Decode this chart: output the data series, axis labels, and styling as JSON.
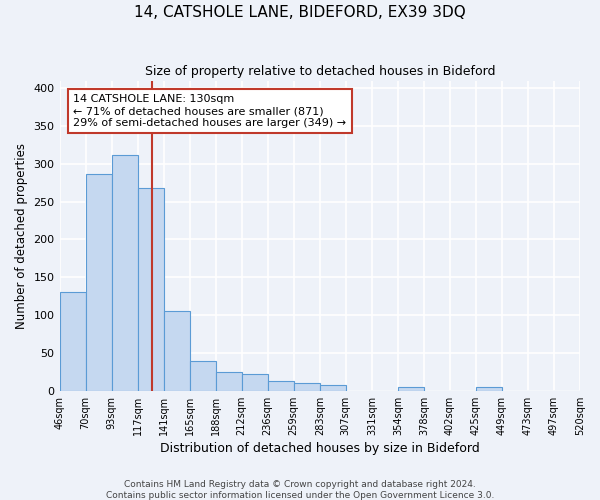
{
  "title": "14, CATSHOLE LANE, BIDEFORD, EX39 3DQ",
  "subtitle": "Size of property relative to detached houses in Bideford",
  "xlabel": "Distribution of detached houses by size in Bideford",
  "ylabel": "Number of detached properties",
  "bin_labels": [
    "46sqm",
    "70sqm",
    "93sqm",
    "117sqm",
    "141sqm",
    "165sqm",
    "188sqm",
    "212sqm",
    "236sqm",
    "259sqm",
    "283sqm",
    "307sqm",
    "331sqm",
    "354sqm",
    "378sqm",
    "402sqm",
    "425sqm",
    "449sqm",
    "473sqm",
    "497sqm",
    "520sqm"
  ],
  "bar_values": [
    130,
    287,
    312,
    268,
    106,
    40,
    25,
    22,
    13,
    10,
    8,
    0,
    0,
    5,
    0,
    0,
    5,
    0,
    0,
    0
  ],
  "bar_color": "#c5d8f0",
  "bar_edgecolor": "#5b9bd5",
  "bar_linewidth": 0.8,
  "vline_color": "#c0392b",
  "annotation_title": "14 CATSHOLE LANE: 130sqm",
  "annotation_line1": "← 71% of detached houses are smaller (871)",
  "annotation_line2": "29% of semi-detached houses are larger (349) →",
  "annotation_box_edgecolor": "#c0392b",
  "annotation_box_facecolor": "white",
  "ylim": [
    0,
    410
  ],
  "yticks": [
    0,
    50,
    100,
    150,
    200,
    250,
    300,
    350,
    400
  ],
  "footer1": "Contains HM Land Registry data © Crown copyright and database right 2024.",
  "footer2": "Contains public sector information licensed under the Open Government Licence 3.0.",
  "background_color": "#eef2f9",
  "grid_color": "white",
  "figsize": [
    6.0,
    5.0
  ],
  "dpi": 100
}
